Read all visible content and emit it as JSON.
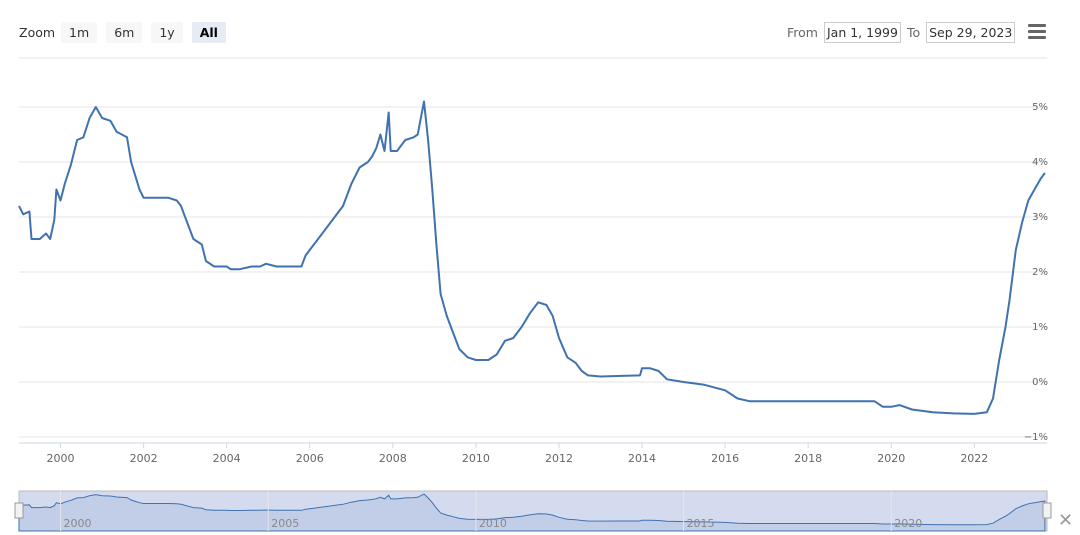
{
  "toolbar": {
    "zoom_label": "Zoom",
    "buttons": [
      "1m",
      "6m",
      "1y",
      "All"
    ],
    "active": "All",
    "from_label": "From",
    "from_value": "Jan 1, 1999",
    "to_label": "To",
    "to_value": "Sep 29, 2023",
    "menu_icon": "hamburger-icon"
  },
  "navigator": {
    "close_icon": "close-x-icon",
    "labels": [
      "2000",
      "2005",
      "2010",
      "2015",
      "2020"
    ]
  },
  "colors": {
    "line": "#3f72af",
    "grid": "#e6e6e6",
    "navigator_fill": "#d4dbef"
  },
  "chart_data": {
    "type": "line",
    "title": "",
    "xlabel": "",
    "ylabel": "",
    "xlim": [
      1999.0,
      2023.75
    ],
    "ylim": [
      -1,
      6
    ],
    "x_ticks": [
      "2000",
      "2002",
      "2004",
      "2006",
      "2008",
      "2010",
      "2012",
      "2014",
      "2016",
      "2018",
      "2020",
      "2022"
    ],
    "y_ticks": [
      "5%",
      "4%",
      "3%",
      "2%",
      "1%",
      "0%",
      "−1%"
    ],
    "y_tick_values": [
      5,
      4,
      3,
      2,
      1,
      0,
      -1
    ],
    "grid": true,
    "legend": "none",
    "series": [
      {
        "points": [
          [
            1999.0,
            3.2
          ],
          [
            1999.1,
            3.05
          ],
          [
            1999.25,
            3.1
          ],
          [
            1999.3,
            2.6
          ],
          [
            1999.5,
            2.6
          ],
          [
            1999.65,
            2.7
          ],
          [
            1999.75,
            2.6
          ],
          [
            1999.85,
            2.95
          ],
          [
            1999.9,
            3.5
          ],
          [
            2000.0,
            3.3
          ],
          [
            2000.1,
            3.6
          ],
          [
            2000.25,
            3.95
          ],
          [
            2000.4,
            4.4
          ],
          [
            2000.55,
            4.45
          ],
          [
            2000.7,
            4.8
          ],
          [
            2000.85,
            5.0
          ],
          [
            2001.0,
            4.8
          ],
          [
            2001.2,
            4.75
          ],
          [
            2001.35,
            4.55
          ],
          [
            2001.6,
            4.45
          ],
          [
            2001.7,
            4.0
          ],
          [
            2001.8,
            3.75
          ],
          [
            2001.9,
            3.5
          ],
          [
            2002.0,
            3.35
          ],
          [
            2002.2,
            3.35
          ],
          [
            2002.4,
            3.35
          ],
          [
            2002.6,
            3.35
          ],
          [
            2002.8,
            3.3
          ],
          [
            2002.9,
            3.2
          ],
          [
            2003.0,
            3.0
          ],
          [
            2003.2,
            2.6
          ],
          [
            2003.4,
            2.5
          ],
          [
            2003.5,
            2.2
          ],
          [
            2003.7,
            2.1
          ],
          [
            2003.9,
            2.1
          ],
          [
            2004.0,
            2.1
          ],
          [
            2004.1,
            2.05
          ],
          [
            2004.3,
            2.05
          ],
          [
            2004.6,
            2.1
          ],
          [
            2004.8,
            2.1
          ],
          [
            2004.95,
            2.15
          ],
          [
            2005.2,
            2.1
          ],
          [
            2005.5,
            2.1
          ],
          [
            2005.8,
            2.1
          ],
          [
            2005.9,
            2.3
          ],
          [
            2006.0,
            2.4
          ],
          [
            2006.2,
            2.6
          ],
          [
            2006.4,
            2.8
          ],
          [
            2006.6,
            3.0
          ],
          [
            2006.8,
            3.2
          ],
          [
            2007.0,
            3.6
          ],
          [
            2007.2,
            3.9
          ],
          [
            2007.4,
            4.0
          ],
          [
            2007.5,
            4.1
          ],
          [
            2007.6,
            4.25
          ],
          [
            2007.7,
            4.5
          ],
          [
            2007.8,
            4.2
          ],
          [
            2007.9,
            4.9
          ],
          [
            2007.95,
            4.2
          ],
          [
            2008.1,
            4.2
          ],
          [
            2008.3,
            4.4
          ],
          [
            2008.5,
            4.45
          ],
          [
            2008.6,
            4.5
          ],
          [
            2008.75,
            5.1
          ],
          [
            2008.85,
            4.4
          ],
          [
            2008.95,
            3.5
          ],
          [
            2009.05,
            2.5
          ],
          [
            2009.15,
            1.6
          ],
          [
            2009.3,
            1.2
          ],
          [
            2009.45,
            0.9
          ],
          [
            2009.6,
            0.6
          ],
          [
            2009.8,
            0.45
          ],
          [
            2010.0,
            0.4
          ],
          [
            2010.3,
            0.4
          ],
          [
            2010.5,
            0.5
          ],
          [
            2010.7,
            0.75
          ],
          [
            2010.9,
            0.8
          ],
          [
            2011.1,
            1.0
          ],
          [
            2011.3,
            1.25
          ],
          [
            2011.5,
            1.45
          ],
          [
            2011.7,
            1.4
          ],
          [
            2011.85,
            1.2
          ],
          [
            2012.0,
            0.8
          ],
          [
            2012.2,
            0.45
          ],
          [
            2012.4,
            0.35
          ],
          [
            2012.55,
            0.2
          ],
          [
            2012.7,
            0.12
          ],
          [
            2013.0,
            0.1
          ],
          [
            2013.5,
            0.11
          ],
          [
            2013.95,
            0.12
          ],
          [
            2014.0,
            0.25
          ],
          [
            2014.2,
            0.25
          ],
          [
            2014.4,
            0.2
          ],
          [
            2014.6,
            0.05
          ],
          [
            2015.0,
            0.0
          ],
          [
            2015.5,
            -0.05
          ],
          [
            2016.0,
            -0.15
          ],
          [
            2016.3,
            -0.3
          ],
          [
            2016.6,
            -0.35
          ],
          [
            2017.0,
            -0.35
          ],
          [
            2018.0,
            -0.35
          ],
          [
            2019.0,
            -0.35
          ],
          [
            2019.6,
            -0.35
          ],
          [
            2019.8,
            -0.45
          ],
          [
            2020.0,
            -0.45
          ],
          [
            2020.2,
            -0.42
          ],
          [
            2020.5,
            -0.5
          ],
          [
            2021.0,
            -0.55
          ],
          [
            2021.5,
            -0.57
          ],
          [
            2022.0,
            -0.58
          ],
          [
            2022.3,
            -0.55
          ],
          [
            2022.45,
            -0.3
          ],
          [
            2022.6,
            0.4
          ],
          [
            2022.75,
            1.0
          ],
          [
            2022.85,
            1.5
          ],
          [
            2023.0,
            2.4
          ],
          [
            2023.15,
            2.9
          ],
          [
            2023.3,
            3.3
          ],
          [
            2023.45,
            3.5
          ],
          [
            2023.6,
            3.7
          ],
          [
            2023.7,
            3.8
          ]
        ]
      }
    ]
  }
}
